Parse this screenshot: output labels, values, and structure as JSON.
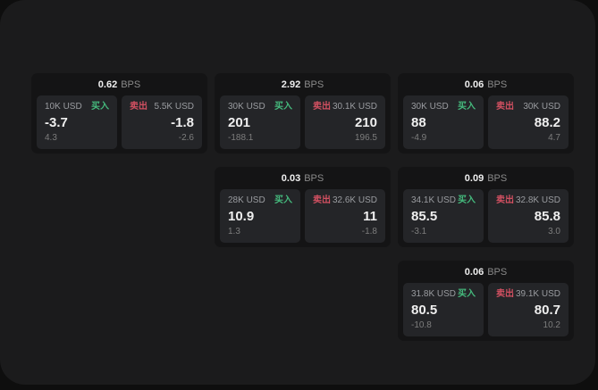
{
  "theme": {
    "outer_bg": "#0e0e0e",
    "page_bg": "#1b1b1c",
    "card_bg": "#141415",
    "panel_bg": "#242528",
    "buy_color": "#45ba7d",
    "sell_color": "#d15061",
    "value_color": "#efefef",
    "muted_color": "#9a9ca0",
    "sub_color": "#7d7d7d",
    "unit_color": "#8a8a8a"
  },
  "cards": [
    {
      "row": 1,
      "col": 1,
      "bps_value": "0.62",
      "bps_unit": "BPS",
      "buy": {
        "amount": "10K USD",
        "label": "买入",
        "value": "-3.7",
        "sub": "4.3"
      },
      "sell": {
        "label": "卖出",
        "amount": "5.5K USD",
        "value": "-1.8",
        "sub": "-2.6"
      }
    },
    {
      "row": 1,
      "col": 2,
      "bps_value": "2.92",
      "bps_unit": "BPS",
      "buy": {
        "amount": "30K USD",
        "label": "买入",
        "value": "201",
        "sub": "-188.1"
      },
      "sell": {
        "label": "卖出",
        "amount": "30.1K USD",
        "value": "210",
        "sub": "196.5"
      }
    },
    {
      "row": 1,
      "col": 3,
      "bps_value": "0.06",
      "bps_unit": "BPS",
      "buy": {
        "amount": "30K USD",
        "label": "买入",
        "value": "88",
        "sub": "-4.9"
      },
      "sell": {
        "label": "卖出",
        "amount": "30K USD",
        "value": "88.2",
        "sub": "4.7"
      }
    },
    {
      "row": 2,
      "col": 2,
      "bps_value": "0.03",
      "bps_unit": "BPS",
      "buy": {
        "amount": "28K USD",
        "label": "买入",
        "value": "10.9",
        "sub": "1.3"
      },
      "sell": {
        "label": "卖出",
        "amount": "32.6K USD",
        "value": "11",
        "sub": "-1.8"
      }
    },
    {
      "row": 2,
      "col": 3,
      "bps_value": "0.09",
      "bps_unit": "BPS",
      "buy": {
        "amount": "34.1K USD",
        "label": "买入",
        "value": "85.5",
        "sub": "-3.1"
      },
      "sell": {
        "label": "卖出",
        "amount": "32.8K USD",
        "value": "85.8",
        "sub": "3.0"
      }
    },
    {
      "row": 3,
      "col": 3,
      "bps_value": "0.06",
      "bps_unit": "BPS",
      "buy": {
        "amount": "31.8K USD",
        "label": "买入",
        "value": "80.5",
        "sub": "-10.8"
      },
      "sell": {
        "label": "卖出",
        "amount": "39.1K USD",
        "value": "80.7",
        "sub": "10.2"
      }
    }
  ]
}
